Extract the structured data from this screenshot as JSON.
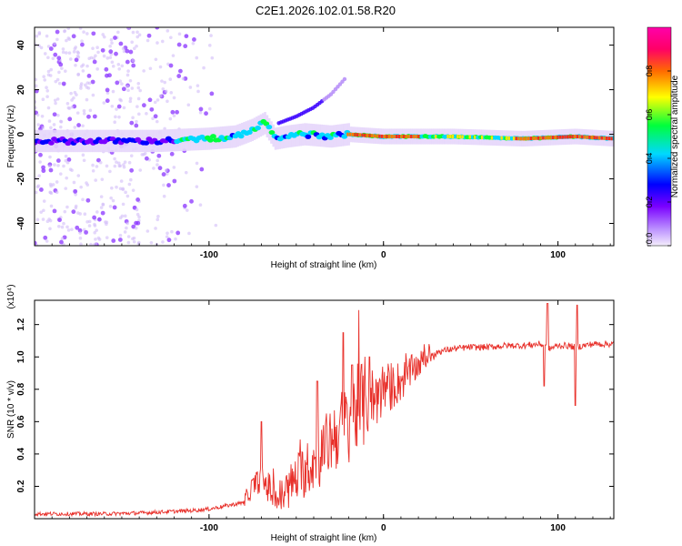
{
  "title": "C2E1.2026.102.01.58.R20",
  "chart_data": [
    {
      "type": "heatmap",
      "panel": "spectrogram",
      "xlabel": "Height of straight line (km)",
      "ylabel": "Frequency (Hz)",
      "xlim": [
        -200,
        132
      ],
      "ylim": [
        -50,
        48
      ],
      "x_ticks": [
        -100,
        0,
        100
      ],
      "x_tick_labels": [
        "-100",
        "0",
        "100"
      ],
      "y_ticks": [
        -40,
        -20,
        0,
        20,
        40
      ],
      "y_tick_labels": [
        "-40",
        "-20",
        "0",
        "20",
        "40"
      ],
      "colorbar": {
        "label": "Normalized spectral amplitude",
        "range": [
          0,
          1
        ],
        "ticks": [
          0,
          0.2,
          0.4,
          0.6,
          0.8
        ],
        "tick_labels": [
          "0.0",
          "0.2",
          "0.4",
          "0.6",
          "0.8"
        ],
        "colors": [
          "#f4eefc",
          "#7a00ff",
          "#0000ff",
          "#00d8ff",
          "#00ff3c",
          "#ffff00",
          "#ff6a00",
          "#ff0066",
          "#ff00aa"
        ]
      },
      "band_center_line": {
        "x": [
          -200,
          -160,
          -130,
          -100,
          -85,
          -75,
          -68,
          -62,
          -55,
          -45,
          -30,
          -20,
          0,
          40,
          80,
          110,
          132
        ],
        "y": [
          -3,
          -3,
          -3,
          -2,
          -1,
          2,
          5,
          -2,
          -1,
          0,
          -1,
          0,
          -1,
          -1,
          -2,
          -1,
          -2
        ]
      },
      "upper_branch": {
        "x": [
          -60,
          -50,
          -40,
          -30,
          -22
        ],
        "y": [
          5,
          8,
          12,
          18,
          25
        ]
      }
    },
    {
      "type": "line",
      "panel": "snr",
      "xlabel": "Height of straight line (km)",
      "ylabel": "SNR (10 * v/v)",
      "scale_label": "(x10⁴)",
      "xlim": [
        -200,
        132
      ],
      "ylim": [
        0,
        1.35
      ],
      "x_ticks": [
        -100,
        0,
        100
      ],
      "x_tick_labels": [
        "-100",
        "0",
        "100"
      ],
      "y_ticks": [
        0.2,
        0.4,
        0.6,
        0.8,
        1.0,
        1.2
      ],
      "y_tick_labels": [
        "0.2",
        "0.4",
        "0.6",
        "0.8",
        "1.0",
        "1.2"
      ],
      "color": "#e8302a",
      "series": [
        {
          "name": "SNR",
          "x": [
            -200,
            -180,
            -160,
            -140,
            -130,
            -120,
            -110,
            -100,
            -90,
            -80,
            -75,
            -70,
            -65,
            -60,
            -55,
            -50,
            -45,
            -40,
            -35,
            -30,
            -25,
            -20,
            -15,
            -10,
            -5,
            0,
            5,
            10,
            15,
            20,
            25,
            30,
            40,
            50,
            60,
            70,
            80,
            90,
            95,
            100,
            105,
            110,
            115,
            120,
            125,
            132
          ],
          "y": [
            0.03,
            0.03,
            0.03,
            0.035,
            0.04,
            0.045,
            0.05,
            0.06,
            0.08,
            0.1,
            0.2,
            0.25,
            0.18,
            0.12,
            0.18,
            0.25,
            0.3,
            0.35,
            0.4,
            0.5,
            0.55,
            0.6,
            0.68,
            0.72,
            0.75,
            0.8,
            0.82,
            0.85,
            0.9,
            0.95,
            1.0,
            1.03,
            1.05,
            1.06,
            1.06,
            1.07,
            1.07,
            1.08,
            1.05,
            1.07,
            1.07,
            1.06,
            1.07,
            1.08,
            1.08,
            1.08
          ]
        }
      ],
      "spikes": {
        "x": [
          -70,
          -38,
          -23,
          -18,
          -8,
          92,
          94,
          110,
          111
        ],
        "y": [
          0.6,
          0.85,
          1.15,
          0.95,
          1.0,
          0.82,
          1.33,
          0.7,
          1.32
        ]
      }
    }
  ]
}
